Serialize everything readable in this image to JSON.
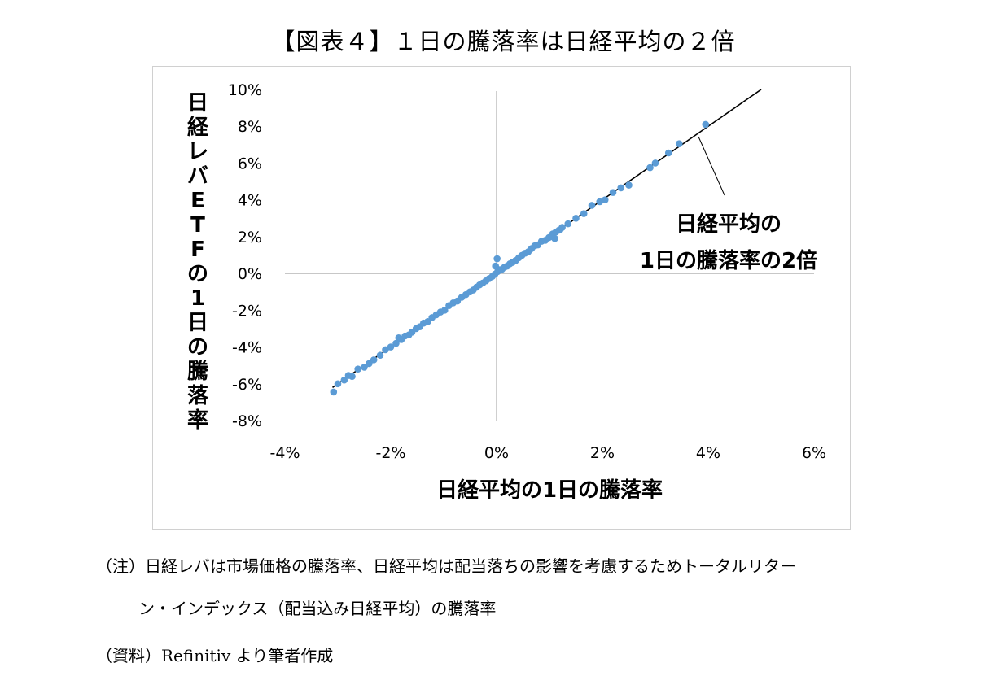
{
  "title": "【図表４】１日の騰落率は日経平均の２倍",
  "note_line1": "（注）日経レバは市場価格の騰落率、日経平均は配当落ちの影響を考慮するためトータルリター",
  "note_line2": "ン・インデックス（配当込み日経平均）の騰落率",
  "source": "（資料）Refinitiv より筆者作成",
  "chart_data": {
    "type": "scatter",
    "xlabel": "日経平均の1日の騰落率",
    "ylabel": "日経レバETFの1日の騰落率",
    "xlim": [
      -0.04,
      0.06
    ],
    "ylim": [
      -0.08,
      0.1
    ],
    "x_ticks": [
      "-4%",
      "-2%",
      "0%",
      "2%",
      "4%",
      "6%"
    ],
    "y_ticks": [
      "10%",
      "8%",
      "6%",
      "4%",
      "2%",
      "0%",
      "-2%",
      "-4%",
      "-6%",
      "-8%"
    ],
    "annotation": [
      "日経平均の",
      "1日の騰落率の2倍"
    ],
    "reference_line": {
      "slope": 2,
      "x_range": [
        -0.031,
        0.05
      ]
    },
    "colors": {
      "points": "#5b9bd5",
      "line": "#000000",
      "axis": "#bfbfbf"
    },
    "points": {
      "x": [
        -0.0308,
        -0.03,
        -0.0288,
        -0.028,
        -0.0273,
        -0.0262,
        -0.025,
        -0.0241,
        -0.0232,
        -0.022,
        -0.021,
        -0.02,
        -0.019,
        -0.0185,
        -0.018,
        -0.0173,
        -0.0166,
        -0.016,
        -0.0152,
        -0.0145,
        -0.0138,
        -0.013,
        -0.0122,
        -0.0114,
        -0.0106,
        -0.0098,
        -0.009,
        -0.0082,
        -0.0074,
        -0.0066,
        -0.0058,
        -0.005,
        -0.0044,
        -0.0038,
        -0.0032,
        -0.0026,
        -0.002,
        -0.0014,
        -0.0008,
        -0.0003,
        0.0002,
        0.0006,
        0.001,
        0.0015,
        0.002,
        0.0025,
        0.003,
        0.0036,
        0.0042,
        0.0048,
        0.0054,
        0.006,
        0.0066,
        0.0072,
        0.0078,
        0.0085,
        0.0092,
        0.0099,
        0.0106,
        0.0112,
        0.0118,
        0.0124,
        0.011,
        0.0104,
        0.0135,
        0.015,
        0.0165,
        0.018,
        0.0195,
        0.0205,
        0.022,
        0.0235,
        0.025,
        0.029,
        0.03,
        0.0325,
        0.0345,
        0.0395,
        0.0001,
        -0.0002
      ],
      "y": [
        -0.0645,
        -0.06,
        -0.058,
        -0.0555,
        -0.056,
        -0.052,
        -0.051,
        -0.049,
        -0.047,
        -0.0445,
        -0.0415,
        -0.04,
        -0.038,
        -0.035,
        -0.036,
        -0.034,
        -0.0335,
        -0.032,
        -0.03,
        -0.029,
        -0.027,
        -0.0262,
        -0.024,
        -0.0225,
        -0.021,
        -0.02,
        -0.0175,
        -0.016,
        -0.015,
        -0.013,
        -0.0115,
        -0.01,
        -0.009,
        -0.0075,
        -0.0062,
        -0.0052,
        -0.004,
        -0.0028,
        -0.0016,
        -0.0004,
        0.001,
        0.002,
        0.0022,
        0.0034,
        0.004,
        0.0052,
        0.006,
        0.007,
        0.0085,
        0.0098,
        0.011,
        0.0118,
        0.0135,
        0.015,
        0.0155,
        0.0175,
        0.018,
        0.0195,
        0.0215,
        0.0225,
        0.0235,
        0.025,
        0.019,
        0.0205,
        0.027,
        0.03,
        0.0325,
        0.037,
        0.039,
        0.04,
        0.044,
        0.0465,
        0.048,
        0.0575,
        0.06,
        0.0655,
        0.0705,
        0.081,
        0.008,
        0.004
      ]
    }
  }
}
